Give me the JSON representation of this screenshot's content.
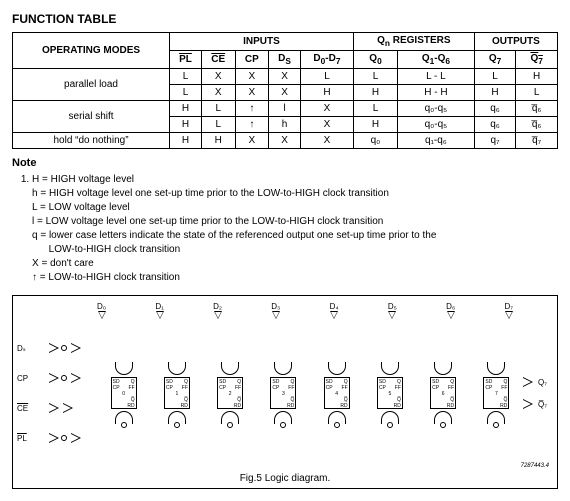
{
  "title": "FUNCTION TABLE",
  "headers": {
    "operating_modes": "OPERATING MODES",
    "inputs": "INPUTS",
    "qn_registers": "Q",
    "qn_registers_suffix": " REGISTERS",
    "outputs": "OUTPUTS",
    "pl": "PL",
    "ce": "CE",
    "cp": "CP",
    "ds": "D",
    "d0d7": "D",
    "q0": "Q",
    "q1q6": "Q",
    "q7": "Q",
    "q7bar": "Q"
  },
  "subidx": {
    "n": "n",
    "s": "S",
    "r07": "0",
    "r7lab": "7",
    "zero": "0",
    "one_six": "1",
    "six": "6",
    "seven": "7",
    "d7": "7",
    "dash07": "-D"
  },
  "rows": [
    {
      "mode": "parallel load",
      "pl": "L",
      "ce": "X",
      "cp": "X",
      "ds": "X",
      "d": "L",
      "q0": "L",
      "q1q6": "L - L",
      "q7": "L",
      "q7b": "H"
    },
    {
      "mode": "",
      "pl": "L",
      "ce": "X",
      "cp": "X",
      "ds": "X",
      "d": "H",
      "q0": "H",
      "q1q6": "H - H",
      "q7": "H",
      "q7b": "L"
    },
    {
      "mode": "serial shift",
      "pl": "H",
      "ce": "L",
      "cp": "↑",
      "ds": "l",
      "d": "X",
      "q0": "L",
      "q1q6": "q₀-q₅",
      "q7": "q₆",
      "q7b": "q̅₆"
    },
    {
      "mode": "",
      "pl": "H",
      "ce": "L",
      "cp": "↑",
      "ds": "h",
      "d": "X",
      "q0": "H",
      "q1q6": "q₀-q₅",
      "q7": "q₆",
      "q7b": "q̅₆"
    },
    {
      "mode": "hold “do nothing”",
      "pl": "H",
      "ce": "H",
      "cp": "X",
      "ds": "X",
      "d": "X",
      "q0": "q₀",
      "q1q6": "q₁-q₆",
      "q7": "q₇",
      "q7b": "q̅₇"
    }
  ],
  "note_head": "Note",
  "note_lines": [
    "H = HIGH voltage level",
    "h = HIGH voltage level one set-up time prior to the LOW-to-HIGH clock transition",
    "L = LOW voltage level",
    "l = LOW voltage level one set-up time prior to the LOW-to-HIGH clock transition",
    "q = lower case letters indicate the state of the referenced output one set-up time prior to the",
    "      LOW-to-HIGH clock transition",
    "X = don't care",
    "↑ = LOW-to-HIGH clock transition"
  ],
  "logic": {
    "inputs_top": [
      "D₀",
      "D₁",
      "D₂",
      "D₃",
      "D₄",
      "D₅",
      "D₆",
      "D₇"
    ],
    "left": [
      "Dₛ",
      "CP",
      "CE",
      "PL"
    ],
    "ff_labels": {
      "sd": "SD",
      "q": "Q",
      "cp": "CP",
      "ffp": "FF",
      "qb": "Q̅",
      "rd": "RD"
    },
    "ff_idx": [
      "0",
      "1",
      "2",
      "3",
      "4",
      "5",
      "6",
      "7"
    ],
    "right": [
      "Q₇",
      "Q̅₇"
    ],
    "caption": "Fig.5  Logic diagram.",
    "partnum": "7287443.4"
  }
}
